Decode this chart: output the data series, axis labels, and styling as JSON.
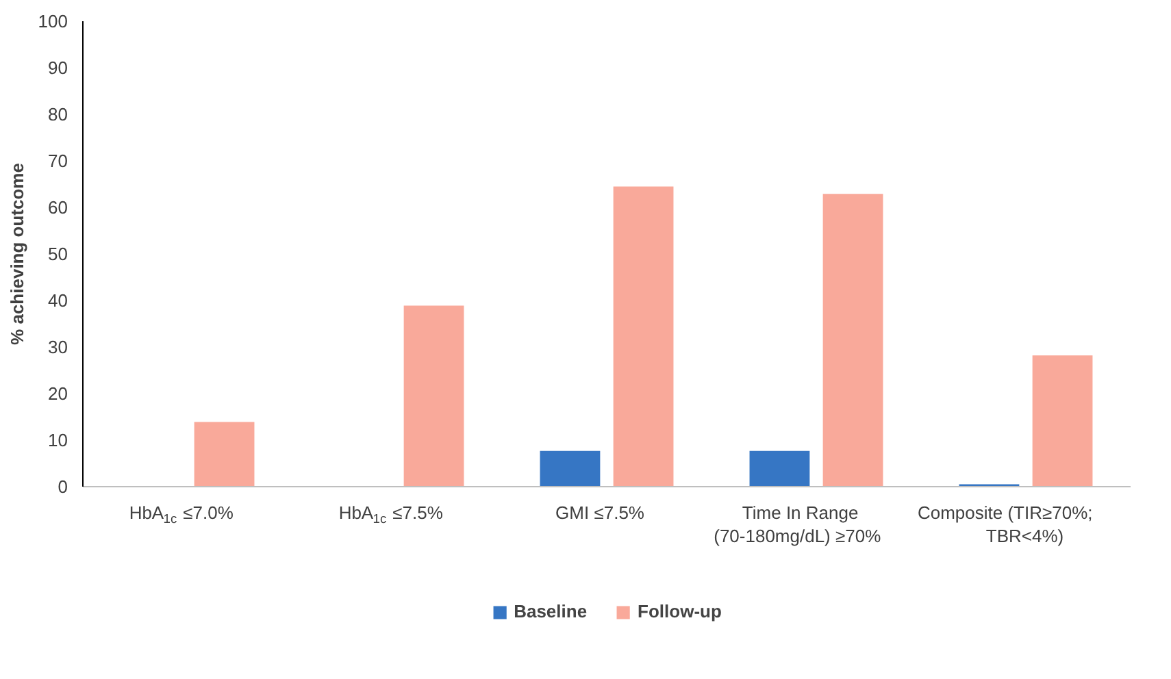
{
  "chart_data": {
    "type": "bar",
    "ylabel": "% achieving outcome",
    "categories": [
      "HbA$_{1c}$ ≤7.0%",
      "HbA$_{1c}$ ≤7.5%",
      "GMI ≤7.5%",
      "Time In Range (70-180mg/dL) ≥70%",
      "Composite (TIR≥70%; TBR<4%)"
    ],
    "series": [
      {
        "name": "Baseline",
        "color": "#3676c4",
        "values": [
          0,
          0,
          7.7,
          7.7,
          0.5
        ]
      },
      {
        "name": "Follow-up",
        "color": "#f9a99a",
        "values": [
          13.9,
          38.9,
          64.5,
          62.9,
          28.2
        ]
      }
    ],
    "ylim": [
      0,
      100
    ],
    "yticks": [
      0,
      10,
      20,
      30,
      40,
      50,
      60,
      70,
      80,
      90,
      100
    ],
    "grid": false,
    "legend": "bottom"
  }
}
